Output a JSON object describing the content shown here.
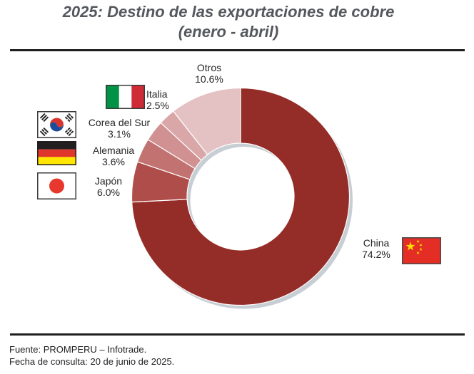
{
  "title": {
    "line1": "2025: Destino de las exportaciones de cobre",
    "line2": "(enero - abril)"
  },
  "footer": {
    "line1": "Fuente: PROMPERU – Infotrade.",
    "line2": "Fecha de consulta: 20 de junio de 2025."
  },
  "chart_data": {
    "type": "pie",
    "subtype": "donut",
    "title": "2025: Destino de las exportaciones de cobre (enero - abril)",
    "unit": "%",
    "direction": "clockwise",
    "start_angle_deg": 0,
    "hole_ratio": 0.49,
    "items": [
      {
        "label": "China",
        "value": 74.2,
        "pct_label": "74.2%",
        "color": "#942c27",
        "flag": "china"
      },
      {
        "label": "Japón",
        "value": 6.0,
        "pct_label": "6.0%",
        "color": "#ae4d49",
        "flag": "japan"
      },
      {
        "label": "Alemania",
        "value": 3.6,
        "pct_label": "3.6%",
        "color": "#c27371",
        "flag": "germany"
      },
      {
        "label": "Corea del Sur",
        "value": 3.1,
        "pct_label": "3.1%",
        "color": "#d19092",
        "flag": "south-korea"
      },
      {
        "label": "Italia",
        "value": 2.5,
        "pct_label": "2.5%",
        "color": "#daa7a8",
        "flag": "italy"
      },
      {
        "label": "Otros",
        "value": 10.6,
        "pct_label": "10.6%",
        "color": "#e4c1c3",
        "flag": null
      }
    ]
  },
  "colors": {
    "shadow": "#c7ced4",
    "slice_border": "#ffffff",
    "italy_green": "#009246",
    "italy_white": "#ffffff",
    "italy_red": "#ce2b37",
    "germany_black": "#231f20",
    "germany_red": "#e0352b",
    "germany_gold": "#ffe500",
    "japan_white": "#ffffff",
    "japan_red": "#e8382d",
    "korea_white": "#ffffff",
    "korea_red": "#d9352c",
    "korea_blue": "#1e4c9a",
    "korea_black": "#1f1f1f",
    "china_red": "#e42d25",
    "china_yellow": "#ffde00"
  }
}
